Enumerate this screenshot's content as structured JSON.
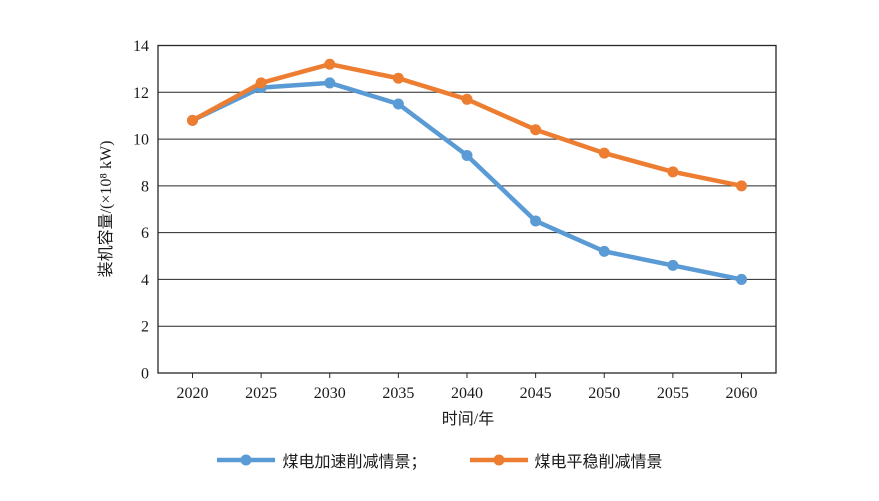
{
  "chart_data": {
    "type": "line",
    "title": "",
    "xlabel": "时间/年",
    "ylabel": "装机容量/(×10⁸ kW)",
    "categories": [
      "2020",
      "2025",
      "2030",
      "2035",
      "2040",
      "2045",
      "2050",
      "2055",
      "2060"
    ],
    "series": [
      {
        "name": "煤电加速削减情景",
        "color": "#5B9BD5",
        "values": [
          10.8,
          12.2,
          12.4,
          11.5,
          9.3,
          6.5,
          5.2,
          4.6,
          4.0
        ]
      },
      {
        "name": "煤电平稳削减情景",
        "color": "#ED7D31",
        "values": [
          10.8,
          12.4,
          13.2,
          12.6,
          11.7,
          10.4,
          9.4,
          8.6,
          8.0
        ]
      }
    ],
    "ylim": [
      0,
      14
    ],
    "yticks": [
      0,
      2,
      4,
      6,
      8,
      10,
      12,
      14
    ],
    "grid": "horizontal",
    "plot_border": true,
    "legend_position": "bottom",
    "legend": [
      {
        "label": "煤电加速削减情景；",
        "color": "#5B9BD5"
      },
      {
        "label": "煤电平稳削减情景",
        "color": "#ED7D31"
      }
    ]
  },
  "colors": {
    "axis": "#262626",
    "text": "#1a1a1a",
    "background": "#ffffff"
  }
}
